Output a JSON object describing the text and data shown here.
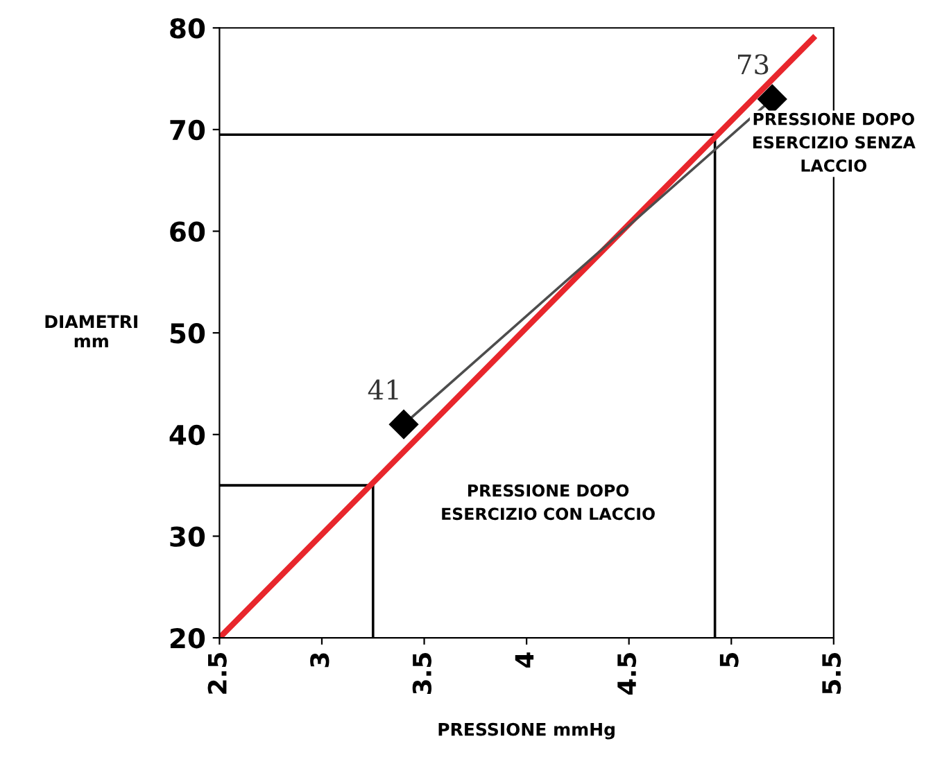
{
  "chart_data": {
    "type": "line",
    "xlabel": "PRESSIONE mmHg",
    "ylabel": "DIAMETRI\nmm",
    "xlim": [
      2.5,
      5.5
    ],
    "ylim": [
      20,
      80
    ],
    "xticks": [
      2.5,
      3,
      3.5,
      4,
      4.5,
      5,
      5.5
    ],
    "yticks": [
      20,
      30,
      40,
      50,
      60,
      70,
      80
    ],
    "grid": false,
    "series": [
      {
        "color": "#000000",
        "x": [
          2.5,
          3.25,
          3.25
        ],
        "values": [
          35,
          35,
          20
        ]
      },
      {
        "color": "#000000",
        "x": [
          2.5,
          4.92,
          4.92
        ],
        "values": [
          69.5,
          69.5,
          20
        ]
      },
      {
        "color": "#e8262c",
        "x": [
          2.5,
          5.4
        ],
        "values": [
          20,
          79
        ]
      },
      {
        "color": "#4d4d4d",
        "marker": "diamond",
        "x": [
          3.4,
          5.2
        ],
        "values": [
          41,
          73
        ],
        "value_labels": [
          "41",
          "73"
        ]
      }
    ],
    "annotations": [
      "PRESSIONE DOPO\nESERCIZIO CON LACCIO",
      "PRESSIONE DOPO\nESERCIZIO SENZA\nLACCIO"
    ]
  }
}
